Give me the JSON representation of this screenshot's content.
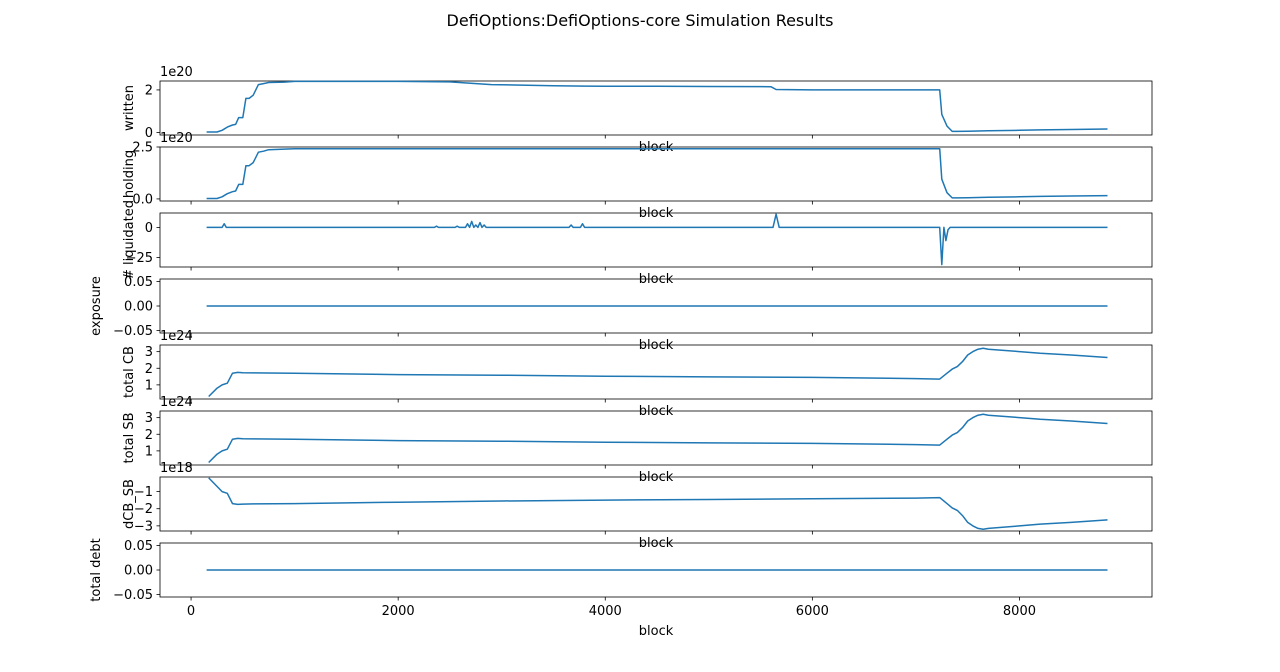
{
  "figure": {
    "title": "DefiOptions:DefiOptions-core Simulation Results",
    "line_color": "#1f77b4"
  },
  "chart_data": [
    {
      "type": "line",
      "ylabel": "written",
      "xlabel": "block",
      "offset_text": "1e20",
      "xlim": [
        -300,
        9280
      ],
      "ylim": [
        -0.12,
        2.42
      ],
      "x_ticks": [
        0,
        2000,
        4000,
        6000,
        8000
      ],
      "y_ticks": [
        0,
        2
      ],
      "y_tick_labels": [
        "0",
        "2"
      ],
      "series": [
        {
          "x": [
            150,
            250,
            300,
            350,
            400,
            430,
            460,
            500,
            530,
            560,
            600,
            650,
            700,
            750,
            900,
            1000,
            1500,
            2000,
            2500,
            2900,
            3500,
            3800,
            4000,
            4500,
            5000,
            5600,
            5650,
            6000,
            7000,
            7230,
            7250,
            7300,
            7350,
            7400,
            7500,
            7700,
            8000,
            8200,
            8500,
            8850
          ],
          "values": [
            0.02,
            0.02,
            0.1,
            0.25,
            0.35,
            0.38,
            0.7,
            0.7,
            1.6,
            1.6,
            1.75,
            2.25,
            2.3,
            2.35,
            2.37,
            2.4,
            2.4,
            2.4,
            2.38,
            2.25,
            2.2,
            2.18,
            2.17,
            2.17,
            2.16,
            2.15,
            2.02,
            2.0,
            2.0,
            2.0,
            0.85,
            0.3,
            0.05,
            0.05,
            0.06,
            0.08,
            0.1,
            0.12,
            0.14,
            0.16
          ]
        }
      ]
    },
    {
      "type": "line",
      "ylabel": "holding",
      "xlabel": "block",
      "offset_text": "1e20",
      "xlim": [
        -300,
        9280
      ],
      "ylim": [
        -0.1,
        2.5
      ],
      "x_ticks": [
        0,
        2000,
        4000,
        6000,
        8000
      ],
      "y_ticks": [
        0,
        2.5
      ],
      "y_tick_labels": [
        "0.0",
        "2.5"
      ],
      "series": [
        {
          "x": [
            150,
            250,
            300,
            350,
            400,
            430,
            460,
            500,
            530,
            560,
            600,
            650,
            700,
            750,
            900,
            1000,
            7230,
            7250,
            7300,
            7350,
            7400,
            7500,
            7700,
            8000,
            8200,
            8500,
            8850
          ],
          "values": [
            0.02,
            0.02,
            0.1,
            0.25,
            0.35,
            0.38,
            0.7,
            0.7,
            1.6,
            1.6,
            1.75,
            2.25,
            2.3,
            2.37,
            2.4,
            2.42,
            2.42,
            0.95,
            0.3,
            0.05,
            0.05,
            0.06,
            0.08,
            0.1,
            0.12,
            0.14,
            0.16
          ]
        }
      ]
    },
    {
      "type": "line",
      "ylabel": "# liquidated",
      "xlabel": "block",
      "offset_text": "",
      "xlim": [
        -300,
        9280
      ],
      "ylim": [
        -33,
        12
      ],
      "x_ticks": [
        0,
        2000,
        4000,
        6000,
        8000
      ],
      "y_ticks": [
        0,
        -25
      ],
      "y_tick_labels": [
        "0",
        "−25"
      ],
      "series": [
        {
          "x": [
            150,
            300,
            320,
            340,
            2350,
            2370,
            2390,
            2550,
            2570,
            2590,
            2650,
            2670,
            2690,
            2710,
            2730,
            2750,
            2770,
            2790,
            2810,
            2830,
            2850,
            2870,
            3650,
            3670,
            3690,
            3760,
            3780,
            3800,
            5620,
            5650,
            5680,
            5700,
            7230,
            7250,
            7270,
            7290,
            7310,
            7330,
            7350,
            7370,
            7400,
            8850
          ],
          "values": [
            0,
            0,
            3,
            0,
            0,
            1,
            0,
            0,
            1,
            0,
            0,
            3,
            0,
            5,
            0,
            2,
            0,
            4,
            0,
            2,
            0,
            0,
            0,
            2,
            0,
            0,
            3,
            0,
            0,
            11,
            0,
            0,
            0,
            -31,
            0,
            -11,
            -2,
            0,
            0,
            0,
            0,
            0
          ]
        }
      ]
    },
    {
      "type": "line",
      "ylabel": "exposure",
      "xlabel": "block",
      "offset_text": "",
      "xlim": [
        -300,
        9280
      ],
      "ylim": [
        -0.055,
        0.055
      ],
      "x_ticks": [
        0,
        2000,
        4000,
        6000,
        8000
      ],
      "y_ticks": [
        0.05,
        0.0,
        -0.05
      ],
      "y_tick_labels": [
        "0.05",
        "0.00",
        "−0.05"
      ],
      "series": [
        {
          "x": [
            150,
            8850
          ],
          "values": [
            0,
            0
          ]
        }
      ]
    },
    {
      "type": "line",
      "ylabel": "total CB",
      "xlabel": "block",
      "offset_text": "1e24",
      "xlim": [
        -300,
        9280
      ],
      "ylim": [
        0.15,
        3.4
      ],
      "x_ticks": [
        0,
        2000,
        4000,
        6000,
        8000
      ],
      "y_ticks": [
        1,
        2,
        3
      ],
      "y_tick_labels": [
        "1",
        "2",
        "3"
      ],
      "series": [
        {
          "x": [
            170,
            250,
            300,
            350,
            400,
            450,
            500,
            600,
            1000,
            2000,
            3000,
            4000,
            5000,
            6000,
            7000,
            7230,
            7300,
            7350,
            7400,
            7450,
            7500,
            7550,
            7600,
            7650,
            7700,
            8000,
            8200,
            8500,
            8850
          ],
          "values": [
            0.3,
            0.8,
            1.0,
            1.1,
            1.7,
            1.75,
            1.73,
            1.72,
            1.7,
            1.62,
            1.58,
            1.52,
            1.48,
            1.45,
            1.38,
            1.35,
            1.7,
            1.95,
            2.1,
            2.4,
            2.8,
            3.0,
            3.15,
            3.2,
            3.15,
            3.0,
            2.9,
            2.8,
            2.65
          ]
        }
      ]
    },
    {
      "type": "line",
      "ylabel": "total SB",
      "xlabel": "block",
      "offset_text": "1e24",
      "xlim": [
        -300,
        9280
      ],
      "ylim": [
        0.15,
        3.4
      ],
      "x_ticks": [
        0,
        2000,
        4000,
        6000,
        8000
      ],
      "y_ticks": [
        1,
        2,
        3
      ],
      "y_tick_labels": [
        "1",
        "2",
        "3"
      ],
      "series": [
        {
          "x": [
            170,
            250,
            300,
            350,
            400,
            450,
            500,
            600,
            1000,
            2000,
            3000,
            4000,
            5000,
            6000,
            7000,
            7230,
            7300,
            7350,
            7400,
            7450,
            7500,
            7550,
            7600,
            7650,
            7700,
            8000,
            8200,
            8500,
            8850
          ],
          "values": [
            0.3,
            0.8,
            1.0,
            1.1,
            1.7,
            1.75,
            1.73,
            1.72,
            1.7,
            1.62,
            1.58,
            1.52,
            1.48,
            1.45,
            1.38,
            1.35,
            1.7,
            1.95,
            2.1,
            2.4,
            2.8,
            3.0,
            3.15,
            3.2,
            3.15,
            3.0,
            2.9,
            2.8,
            2.65
          ]
        }
      ]
    },
    {
      "type": "line",
      "ylabel": "dCB_SB",
      "xlabel": "block",
      "offset_text": "1e18",
      "xlim": [
        -300,
        9280
      ],
      "ylim": [
        -3.3,
        -0.15
      ],
      "x_ticks": [
        0,
        2000,
        4000,
        6000,
        8000
      ],
      "y_ticks": [
        -1,
        -2,
        -3
      ],
      "y_tick_labels": [
        "−1",
        "−2",
        "−3"
      ],
      "series": [
        {
          "x": [
            170,
            250,
            300,
            350,
            400,
            450,
            500,
            600,
            1000,
            2000,
            3000,
            4000,
            5000,
            6000,
            7000,
            7230,
            7300,
            7350,
            7400,
            7450,
            7500,
            7550,
            7600,
            7650,
            7700,
            8000,
            8200,
            8500,
            8850
          ],
          "values": [
            -0.2,
            -0.7,
            -1.0,
            -1.1,
            -1.7,
            -1.75,
            -1.73,
            -1.72,
            -1.7,
            -1.62,
            -1.55,
            -1.5,
            -1.46,
            -1.42,
            -1.38,
            -1.35,
            -1.7,
            -1.95,
            -2.1,
            -2.4,
            -2.8,
            -3.0,
            -3.15,
            -3.2,
            -3.15,
            -3.0,
            -2.9,
            -2.8,
            -2.65
          ]
        }
      ]
    },
    {
      "type": "line",
      "ylabel": "total debt",
      "xlabel": "block",
      "offset_text": "",
      "xlim": [
        -300,
        9280
      ],
      "ylim": [
        -0.055,
        0.055
      ],
      "x_ticks": [
        0,
        2000,
        4000,
        6000,
        8000
      ],
      "y_ticks": [
        0.05,
        0.0,
        -0.05
      ],
      "y_tick_labels": [
        "0.05",
        "0.00",
        "−0.05"
      ],
      "x_tick_labels": [
        "0",
        "2000",
        "4000",
        "6000",
        "8000"
      ],
      "series": [
        {
          "x": [
            150,
            8850
          ],
          "values": [
            0,
            0
          ]
        }
      ]
    }
  ]
}
